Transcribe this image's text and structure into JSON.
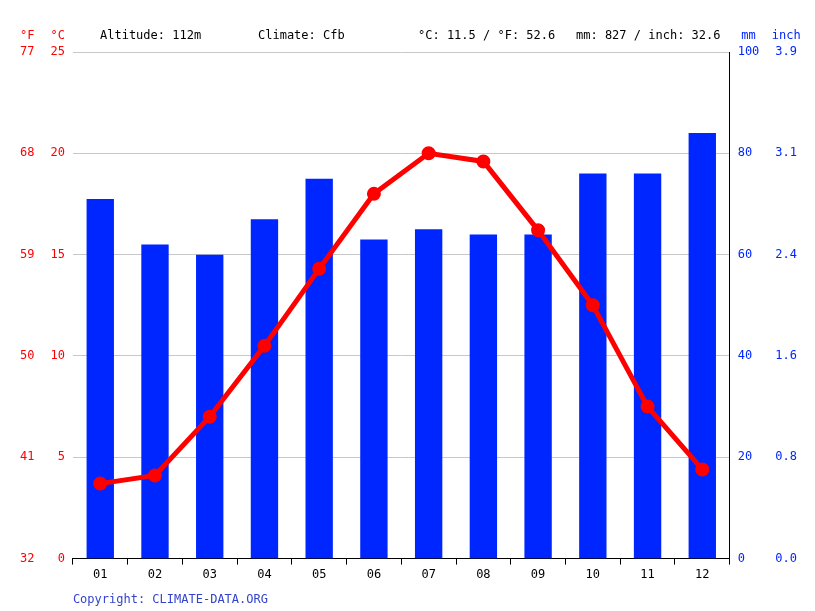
{
  "chart_data": {
    "type": "bar",
    "annotations": [
      "Altitude: 112m",
      "Climate: Cfb",
      "°C: 11.5 / °F: 52.6",
      "mm: 827 / inch: 32.6"
    ],
    "copyright": "Copyright: CLIMATE-DATA.ORG",
    "categories": [
      "01",
      "02",
      "03",
      "04",
      "05",
      "06",
      "07",
      "08",
      "09",
      "10",
      "11",
      "12"
    ],
    "series": [
      {
        "name": "mm",
        "type": "bar",
        "axis": "y2",
        "color": "#0026ff",
        "values": [
          71,
          62,
          60,
          67,
          75,
          63,
          65,
          64,
          64,
          76,
          76,
          84
        ]
      },
      {
        "name": "°C",
        "type": "line",
        "axis": "y",
        "color": "#ff0000",
        "marker": "circle",
        "values": [
          3.7,
          4.1,
          7.0,
          10.5,
          14.3,
          18.0,
          20.0,
          19.6,
          16.2,
          12.5,
          7.5,
          4.4
        ]
      }
    ],
    "y_label": "°C",
    "ylim": [
      0,
      25
    ],
    "yticks": [
      0,
      5,
      10,
      15,
      20,
      25
    ],
    "y2_label": "mm",
    "y2lim": [
      0,
      100
    ],
    "y2ticks": [
      0,
      20,
      40,
      60,
      80,
      100
    ],
    "y3_label": "°F",
    "y3lim": [
      32,
      77
    ],
    "y3ticks": [
      32,
      41,
      50,
      59,
      68,
      77
    ],
    "y4_label": "inch",
    "y4lim": [
      0,
      3.937
    ],
    "y4ticks": [
      {
        "value": 0,
        "label": "0.0"
      },
      {
        "value": 0.7874,
        "label": "0.8"
      },
      {
        "value": 1.5748,
        "label": "1.6"
      },
      {
        "value": 2.3622,
        "label": "2.4"
      },
      {
        "value": 3.1496,
        "label": "3.1"
      },
      {
        "value": 3.937,
        "label": "3.9"
      }
    ],
    "grid": true
  }
}
